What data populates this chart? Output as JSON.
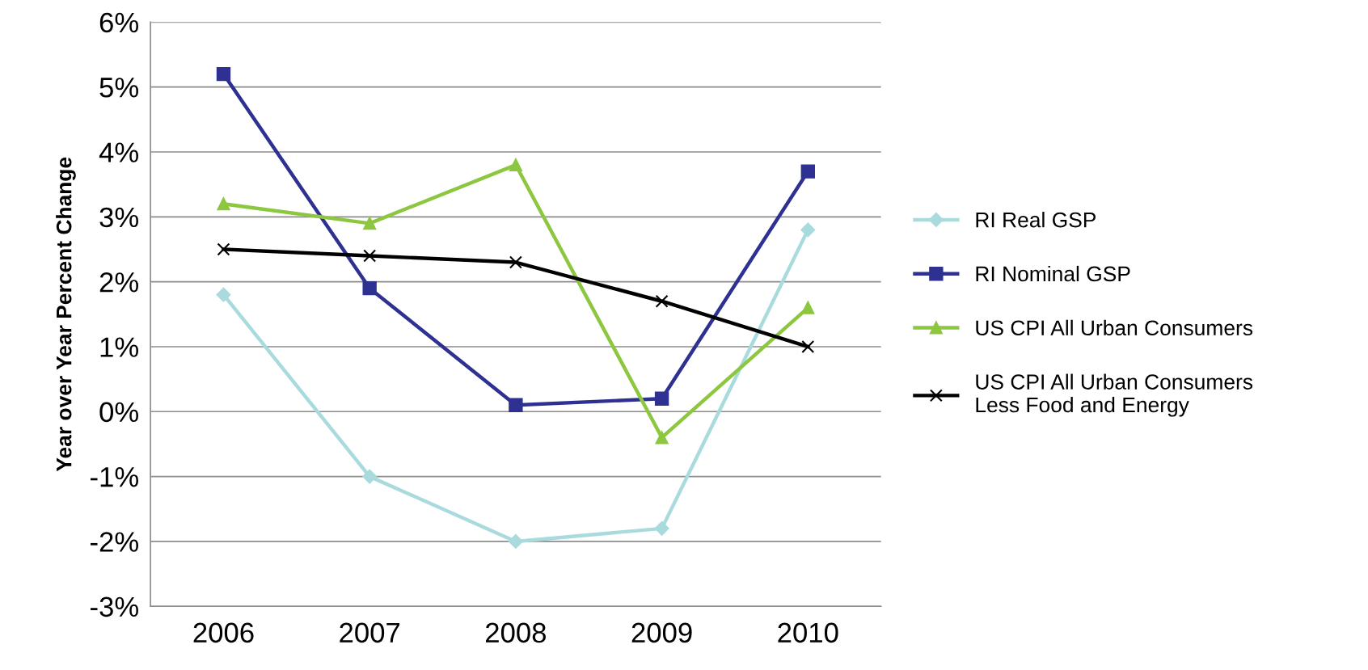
{
  "chart_data": {
    "type": "line",
    "ylabel": "Year over Year Percent Change",
    "categories": [
      "2006",
      "2007",
      "2008",
      "2009",
      "2010"
    ],
    "series": [
      {
        "name": "RI Real GSP",
        "color": "#a9dadd",
        "marker": "diamond",
        "values": [
          1.8,
          -1.0,
          -2.0,
          -1.8,
          2.8
        ]
      },
      {
        "name": "RI Nominal GSP",
        "color": "#2e3192",
        "marker": "square",
        "values": [
          5.2,
          1.9,
          0.1,
          0.2,
          3.7
        ]
      },
      {
        "name": "US CPI All Urban Consumers",
        "color": "#8dc63f",
        "marker": "triangle",
        "values": [
          3.2,
          2.9,
          3.8,
          -0.4,
          1.6
        ]
      },
      {
        "name": "US CPI All Urban Consumers\nLess Food and Energy",
        "color": "#000000",
        "marker": "cross",
        "values": [
          2.5,
          2.4,
          2.3,
          1.7,
          1.0
        ]
      }
    ],
    "ylim": [
      -3,
      6
    ],
    "yticks": [
      {
        "value": -3,
        "label": "-3%"
      },
      {
        "value": -2,
        "label": "-2%"
      },
      {
        "value": -1,
        "label": "-1%"
      },
      {
        "value": 0,
        "label": "0%"
      },
      {
        "value": 1,
        "label": "1%"
      },
      {
        "value": 2,
        "label": "2%"
      },
      {
        "value": 3,
        "label": "3%"
      },
      {
        "value": 4,
        "label": "4%"
      },
      {
        "value": 5,
        "label": "5%"
      },
      {
        "value": 6,
        "label": "6%"
      }
    ],
    "grid": "y",
    "legend": "right",
    "line_style": "solid"
  }
}
